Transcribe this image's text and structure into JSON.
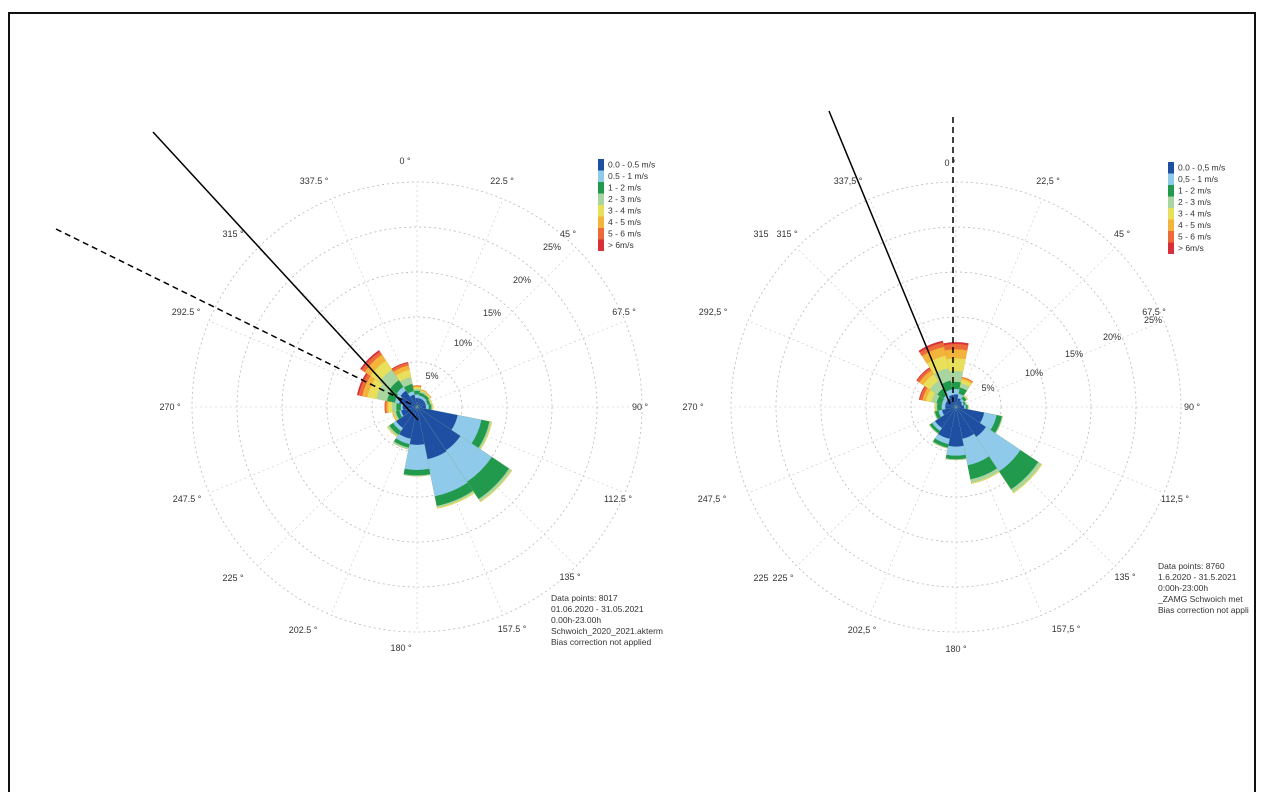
{
  "chart_data": [
    {
      "type": "wind-rose",
      "direction_labels": [
        "0 °",
        "22.5 °",
        "45 °",
        "67.5 °",
        "90 °",
        "112.5 °",
        "135 °",
        "157.5 °",
        "180 °",
        "202.5 °",
        "225 °",
        "247.5 °",
        "270 °",
        "292.5 °",
        "315 °",
        "337.5 °"
      ],
      "radial_labels": [
        "5%",
        "10%",
        "15%",
        "20%",
        "25%"
      ],
      "legend": [
        "0.0 - 0.5 m/s",
        "0.5 - 1 m/s",
        "1 - 2 m/s",
        "2 - 3 m/s",
        "3 - 4 m/s",
        "4 - 5 m/s",
        "5 - 6 m/s",
        "> 6m/s"
      ],
      "info_lines": [
        "Data points: 8017",
        "01.06.2020 - 31.05.2021",
        "0.00h-23.00h",
        "Schwoich_2020_2021.akterm",
        "Bias correction not applied"
      ],
      "rmax_percent": 25,
      "sectors": [
        {
          "dir": 0,
          "cum": [
            1.0,
            1.4,
            1.8,
            2.0,
            2.2,
            2.3,
            2.4,
            2.4
          ]
        },
        {
          "dir": 22.5,
          "cum": [
            1.0,
            1.3,
            1.6,
            1.8,
            1.9,
            2.0,
            2.0,
            2.0
          ]
        },
        {
          "dir": 45,
          "cum": [
            1.0,
            1.3,
            1.6,
            1.7,
            1.8,
            1.9,
            1.9,
            1.9
          ]
        },
        {
          "dir": 67.5,
          "cum": [
            1.0,
            1.2,
            1.5,
            1.6,
            1.7,
            1.7,
            1.7,
            1.7
          ]
        },
        {
          "dir": 90,
          "cum": [
            1.0,
            1.3,
            1.6,
            1.7,
            1.8,
            1.8,
            1.8,
            1.8
          ]
        },
        {
          "dir": 112.5,
          "cum": [
            4.6,
            7.3,
            8.2,
            8.4,
            8.5,
            8.5,
            8.5,
            8.5
          ]
        },
        {
          "dir": 135,
          "cum": [
            5.8,
            10.0,
            12.3,
            12.6,
            12.7,
            12.7,
            12.7,
            12.7
          ]
        },
        {
          "dir": 157.5,
          "cum": [
            5.9,
            10.1,
            11.2,
            11.4,
            11.5,
            11.5,
            11.5,
            11.5
          ]
        },
        {
          "dir": 180,
          "cum": [
            4.2,
            7.0,
            7.6,
            7.7,
            7.7,
            7.7,
            7.7,
            7.7
          ]
        },
        {
          "dir": 202.5,
          "cum": [
            3.6,
            4.2,
            4.6,
            4.8,
            4.8,
            4.8,
            4.8,
            4.8
          ]
        },
        {
          "dir": 225,
          "cum": [
            2.8,
            3.2,
            3.7,
            3.9,
            4.0,
            4.0,
            4.0,
            4.0
          ]
        },
        {
          "dir": 247.5,
          "cum": [
            1.8,
            2.0,
            2.4,
            2.6,
            2.7,
            2.8,
            2.8,
            2.8
          ]
        },
        {
          "dir": 270,
          "cum": [
            1.6,
            1.8,
            2.3,
            2.8,
            3.2,
            3.4,
            3.6,
            3.6
          ]
        },
        {
          "dir": 292.5,
          "cum": [
            2.0,
            2.5,
            3.4,
            4.6,
            5.6,
            6.2,
            6.6,
            6.8
          ]
        },
        {
          "dir": 315,
          "cum": [
            2.2,
            2.7,
            3.6,
            5.0,
            6.2,
            7.0,
            7.4,
            7.6
          ]
        },
        {
          "dir": 337.5,
          "cum": [
            1.4,
            1.8,
            2.6,
            3.4,
            4.2,
            4.7,
            5.0,
            5.1
          ]
        }
      ]
    },
    {
      "type": "wind-rose",
      "direction_labels": [
        "0 °",
        "22,5 °",
        "45 °",
        "67,5 °",
        "90 °",
        "112,5 °",
        "135 °",
        "157,5 °",
        "180 °",
        "202,5 °",
        "225 °",
        "247,5 °",
        "270 °",
        "292,5 °",
        "315 °",
        "337,5 °"
      ],
      "extra_labels": [
        "315",
        "225"
      ],
      "radial_labels": [
        "5%",
        "10%",
        "15%",
        "20%",
        "25%"
      ],
      "legend": [
        "0.0 - 0,5 m/s",
        "0,5 - 1 m/s",
        "1 - 2 m/s",
        "2 - 3 m/s",
        "3 - 4 m/s",
        "4 - 5 m/s",
        "5 - 6 m/s",
        "> 6m/s"
      ],
      "info_lines": [
        "Data points: 8760",
        "1.6.2020 - 31.5.2021",
        "0:00h-23:00h",
        "_ZAMG Schwoich met",
        "Bias correction not appli"
      ],
      "rmax_percent": 25,
      "sectors": [
        {
          "dir": 0,
          "cum": [
            1.4,
            2.0,
            2.8,
            4.0,
            5.4,
            6.4,
            7.0,
            7.2
          ]
        },
        {
          "dir": 22.5,
          "cum": [
            1.0,
            1.5,
            2.2,
            2.7,
            3.1,
            3.3,
            3.4,
            3.4
          ]
        },
        {
          "dir": 45,
          "cum": [
            0.8,
            1.1,
            1.4,
            1.5,
            1.6,
            1.6,
            1.6,
            1.6
          ]
        },
        {
          "dir": 67.5,
          "cum": [
            0.7,
            0.9,
            1.1,
            1.2,
            1.2,
            1.2,
            1.2,
            1.2
          ]
        },
        {
          "dir": 90,
          "cum": [
            0.9,
            1.1,
            1.3,
            1.4,
            1.4,
            1.4,
            1.4,
            1.4
          ]
        },
        {
          "dir": 112.5,
          "cum": [
            3.2,
            4.6,
            5.2,
            5.3,
            5.3,
            5.3,
            5.3,
            5.3
          ]
        },
        {
          "dir": 135,
          "cum": [
            4.0,
            8.6,
            11.0,
            11.4,
            11.5,
            11.5,
            11.5,
            11.5
          ]
        },
        {
          "dir": 157.5,
          "cum": [
            3.6,
            6.6,
            8.2,
            8.6,
            8.7,
            8.7,
            8.7,
            8.7
          ]
        },
        {
          "dir": 180,
          "cum": [
            4.4,
            5.4,
            5.8,
            5.9,
            5.9,
            5.9,
            5.9,
            5.9
          ]
        },
        {
          "dir": 202.5,
          "cum": [
            3.6,
            4.2,
            4.6,
            4.7,
            4.7,
            4.7,
            4.7,
            4.7
          ]
        },
        {
          "dir": 225,
          "cum": [
            2.8,
            3.2,
            3.5,
            3.6,
            3.6,
            3.6,
            3.6,
            3.6
          ]
        },
        {
          "dir": 247.5,
          "cum": [
            1.6,
            2.0,
            2.4,
            2.5,
            2.5,
            2.5,
            2.5,
            2.5
          ]
        },
        {
          "dir": 270,
          "cum": [
            1.2,
            1.6,
            2.1,
            2.3,
            2.4,
            2.4,
            2.4,
            2.4
          ]
        },
        {
          "dir": 292.5,
          "cum": [
            1.2,
            1.6,
            2.2,
            2.8,
            3.4,
            3.8,
            4.1,
            4.2
          ]
        },
        {
          "dir": 315,
          "cum": [
            1.2,
            1.7,
            2.5,
            3.5,
            4.4,
            4.9,
            5.2,
            5.3
          ]
        },
        {
          "dir": 337.5,
          "cum": [
            1.4,
            2.0,
            3.0,
            4.4,
            5.8,
            6.8,
            7.3,
            7.5
          ]
        }
      ]
    }
  ],
  "colors": [
    "#1f4fa3",
    "#8fcaea",
    "#219a4e",
    "#a8d5a0",
    "#e8e05a",
    "#f2b43a",
    "#ec6a3a",
    "#d8303a"
  ]
}
